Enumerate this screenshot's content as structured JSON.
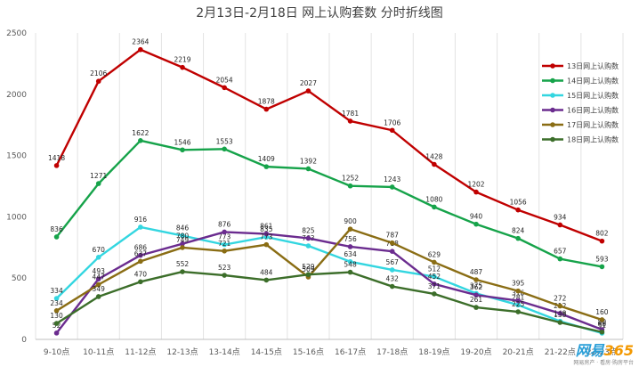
{
  "chart_data": {
    "type": "line",
    "title": "2月13日-2月18日 网上认购套数 分时折线图",
    "categories": [
      "9-10点",
      "10-11点",
      "11-12点",
      "12-13点",
      "13-14点",
      "14-15点",
      "15-16点",
      "16-17点",
      "17-18点",
      "18-19点",
      "19-20点",
      "20-21点",
      "21-22点",
      "22-23点"
    ],
    "ylim": [
      0,
      2500
    ],
    "yticks": [
      0,
      500,
      1000,
      1500,
      2000,
      2500
    ],
    "grid": "vertical",
    "legend_position": "right",
    "series": [
      {
        "name": "13日网上认购数",
        "color": "#c00000",
        "values": [
          1418,
          2106,
          2364,
          2219,
          2054,
          1878,
          2027,
          1781,
          1706,
          1428,
          1202,
          1056,
          934,
          802
        ]
      },
      {
        "name": "14日网上认购数",
        "color": "#16a34a",
        "values": [
          836,
          1271,
          1622,
          1546,
          1553,
          1409,
          1392,
          1252,
          1243,
          1080,
          940,
          824,
          657,
          593
        ]
      },
      {
        "name": "15日网上认购数",
        "color": "#33d6e0",
        "values": [
          334,
          670,
          916,
          846,
          773,
          835,
          763,
          634,
          567,
          512,
          375,
          281,
          148,
          51
        ]
      },
      {
        "name": "16日网上认购数",
        "color": "#6b2c8f",
        "values": [
          52,
          493,
          686,
          780,
          876,
          861,
          825,
          756,
          718,
          452,
          362,
          316,
          212,
          80
        ]
      },
      {
        "name": "17日网上认购数",
        "color": "#8a6d14",
        "values": [
          234,
          447,
          637,
          749,
          721,
          773,
          509,
          900,
          787,
          629,
          487,
          395,
          272,
          160
        ]
      },
      {
        "name": "18日网上认购数",
        "color": "#3c6e2a",
        "values": [
          130,
          349,
          470,
          552,
          523,
          484,
          529,
          548,
          432,
          371,
          261,
          225,
          138,
          60
        ]
      }
    ]
  },
  "watermark": {
    "text": "网易365",
    "sub": "网易房产 · 看房·购房平台"
  }
}
